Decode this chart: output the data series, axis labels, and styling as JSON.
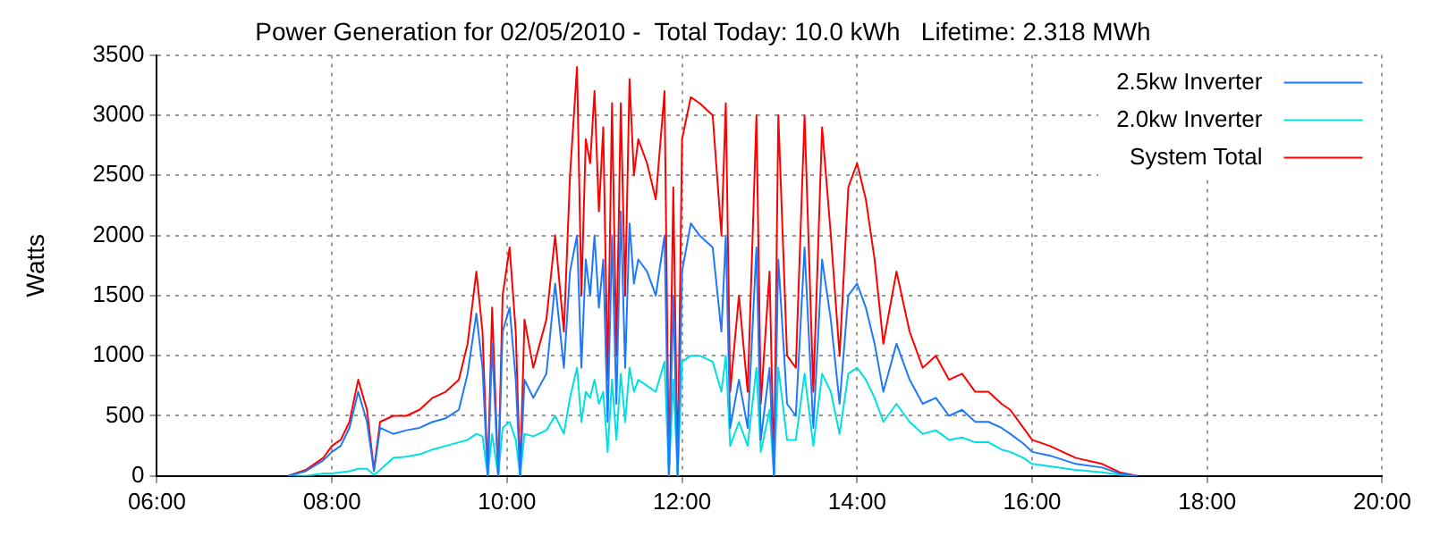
{
  "chart_data": {
    "type": "line",
    "title": "Power Generation for 02/05/2010 -  Total Today: 10.0 kWh   Lifetime: 2.318 MWh",
    "ylabel": "Watts",
    "x": [
      7.5,
      7.7,
      7.9,
      8.0,
      8.1,
      8.2,
      8.3,
      8.4,
      8.48,
      8.55,
      8.7,
      8.85,
      9.0,
      9.15,
      9.3,
      9.45,
      9.55,
      9.65,
      9.72,
      9.78,
      9.83,
      9.9,
      9.95,
      10.03,
      10.1,
      10.15,
      10.2,
      10.3,
      10.45,
      10.55,
      10.65,
      10.72,
      10.8,
      10.85,
      10.9,
      10.95,
      11.0,
      11.05,
      11.1,
      11.15,
      11.2,
      11.25,
      11.3,
      11.35,
      11.4,
      11.45,
      11.5,
      11.6,
      11.7,
      11.8,
      11.85,
      11.9,
      11.95,
      12.0,
      12.1,
      12.2,
      12.35,
      12.45,
      12.5,
      12.55,
      12.65,
      12.75,
      12.85,
      12.9,
      13.0,
      13.05,
      13.1,
      13.2,
      13.3,
      13.4,
      13.5,
      13.6,
      13.7,
      13.8,
      13.9,
      14.0,
      14.1,
      14.2,
      14.3,
      14.45,
      14.6,
      14.75,
      14.9,
      15.05,
      15.2,
      15.35,
      15.5,
      15.65,
      15.75,
      15.9,
      16.0,
      16.2,
      16.5,
      16.8,
      17.0,
      17.2
    ],
    "series": [
      {
        "name": "2.5kw Inverter",
        "color": "#1e78ff",
        "values": [
          0,
          40,
          130,
          200,
          250,
          400,
          700,
          450,
          40,
          400,
          350,
          380,
          400,
          450,
          480,
          550,
          850,
          1350,
          900,
          0,
          1100,
          0,
          1200,
          1400,
          800,
          0,
          800,
          650,
          850,
          1600,
          900,
          1700,
          2000,
          900,
          1800,
          1500,
          2000,
          1400,
          1800,
          450,
          2000,
          600,
          2200,
          900,
          2100,
          1600,
          1800,
          1700,
          1500,
          2000,
          0,
          1500,
          0,
          1700,
          2100,
          2000,
          1900,
          1200,
          2000,
          400,
          800,
          400,
          1900,
          300,
          900,
          0,
          1800,
          600,
          500,
          1900,
          400,
          1800,
          1300,
          600,
          1500,
          1600,
          1400,
          1100,
          700,
          1100,
          800,
          600,
          650,
          500,
          550,
          450,
          450,
          400,
          350,
          270,
          200,
          170,
          100,
          70,
          20,
          0
        ]
      },
      {
        "name": "2.0kw Inverter",
        "color": "#00e0e0",
        "values": [
          0,
          0,
          20,
          20,
          30,
          40,
          60,
          60,
          10,
          50,
          150,
          160,
          180,
          220,
          250,
          280,
          300,
          350,
          330,
          0,
          350,
          0,
          400,
          450,
          300,
          0,
          350,
          330,
          380,
          500,
          350,
          650,
          900,
          450,
          700,
          650,
          800,
          600,
          700,
          200,
          800,
          300,
          850,
          450,
          900,
          700,
          800,
          750,
          700,
          950,
          0,
          800,
          0,
          950,
          1000,
          1000,
          950,
          700,
          1000,
          250,
          450,
          250,
          900,
          200,
          550,
          0,
          900,
          300,
          300,
          850,
          250,
          850,
          700,
          350,
          850,
          900,
          800,
          650,
          450,
          600,
          450,
          350,
          380,
          300,
          320,
          280,
          280,
          220,
          200,
          150,
          100,
          80,
          50,
          30,
          10,
          0
        ]
      },
      {
        "name": "System Total",
        "color": "#ff0000",
        "values": [
          0,
          50,
          150,
          250,
          300,
          450,
          800,
          550,
          50,
          450,
          500,
          500,
          550,
          650,
          700,
          800,
          1100,
          1700,
          1200,
          0,
          1400,
          0,
          1500,
          1900,
          1200,
          0,
          1300,
          900,
          1300,
          2000,
          1200,
          2500,
          3400,
          1500,
          2800,
          2600,
          3200,
          2200,
          2900,
          800,
          3100,
          1000,
          3100,
          1500,
          3300,
          2500,
          2800,
          2600,
          2300,
          3200,
          0,
          2400,
          0,
          2800,
          3150,
          3100,
          3000,
          2000,
          3100,
          700,
          1500,
          700,
          3000,
          600,
          1700,
          0,
          3000,
          1000,
          900,
          3000,
          700,
          2900,
          2000,
          1000,
          2400,
          2600,
          2300,
          1800,
          1100,
          1700,
          1200,
          900,
          1000,
          800,
          850,
          700,
          700,
          600,
          550,
          400,
          300,
          250,
          150,
          100,
          30,
          0
        ]
      }
    ],
    "xlim": [
      6,
      20
    ],
    "xticks": [
      {
        "value": 6,
        "label": "06:00"
      },
      {
        "value": 8,
        "label": "08:00"
      },
      {
        "value": 10,
        "label": "10:00"
      },
      {
        "value": 12,
        "label": "12:00"
      },
      {
        "value": 14,
        "label": "14:00"
      },
      {
        "value": 16,
        "label": "16:00"
      },
      {
        "value": 18,
        "label": "18:00"
      },
      {
        "value": 20,
        "label": "20:00"
      }
    ],
    "ylim": [
      0,
      3500
    ],
    "yticks": [
      0,
      500,
      1000,
      1500,
      2000,
      2500,
      3000,
      3500
    ],
    "grid": true,
    "legend": "top right",
    "marker": "none",
    "line_style": "solid"
  }
}
